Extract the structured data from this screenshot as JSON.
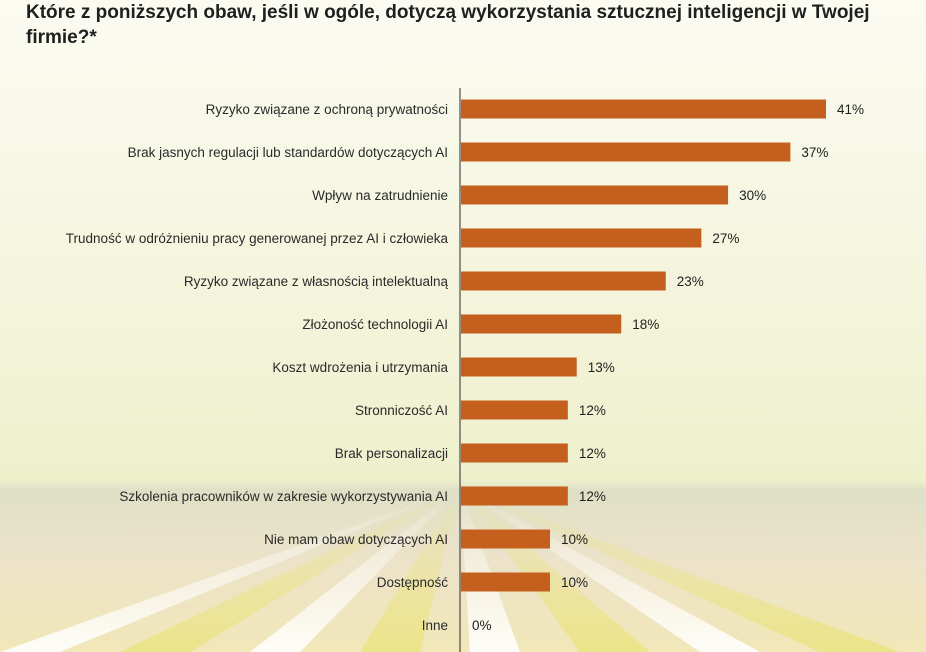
{
  "chart_data": {
    "type": "bar",
    "orientation": "horizontal",
    "title": "Które z poniższych obaw, jeśli w ogóle, dotyczą wykorzystania sztucznej inteligencji w Twojej firmie?*",
    "categories": [
      "Ryzyko związane z ochroną prywatności",
      "Brak jasnych regulacji lub standardów dotyczących AI",
      "Wpływ na zatrudnienie",
      "Trudność w odróżnieniu pracy generowanej przez AI i człowieka",
      "Ryzyko związane z własnością intelektualną",
      "Złożoność technologii AI",
      "Koszt wdrożenia i utrzymania",
      "Stronniczość AI",
      "Brak personalizacji",
      "Szkolenia pracowników w zakresie wykorzystywania AI",
      "Nie mam obaw dotyczących AI",
      "Dostępność",
      "Inne"
    ],
    "values": [
      41,
      37,
      30,
      27,
      23,
      18,
      13,
      12,
      12,
      12,
      10,
      10,
      0
    ],
    "value_labels": [
      "41%",
      "37%",
      "30%",
      "27%",
      "23%",
      "18%",
      "13%",
      "12%",
      "12%",
      "12%",
      "10%",
      "10%",
      "0%"
    ],
    "unit": "%",
    "xlim": [
      0,
      41
    ],
    "grid": false,
    "legend": "none",
    "bar_color": "#c55f1e"
  }
}
